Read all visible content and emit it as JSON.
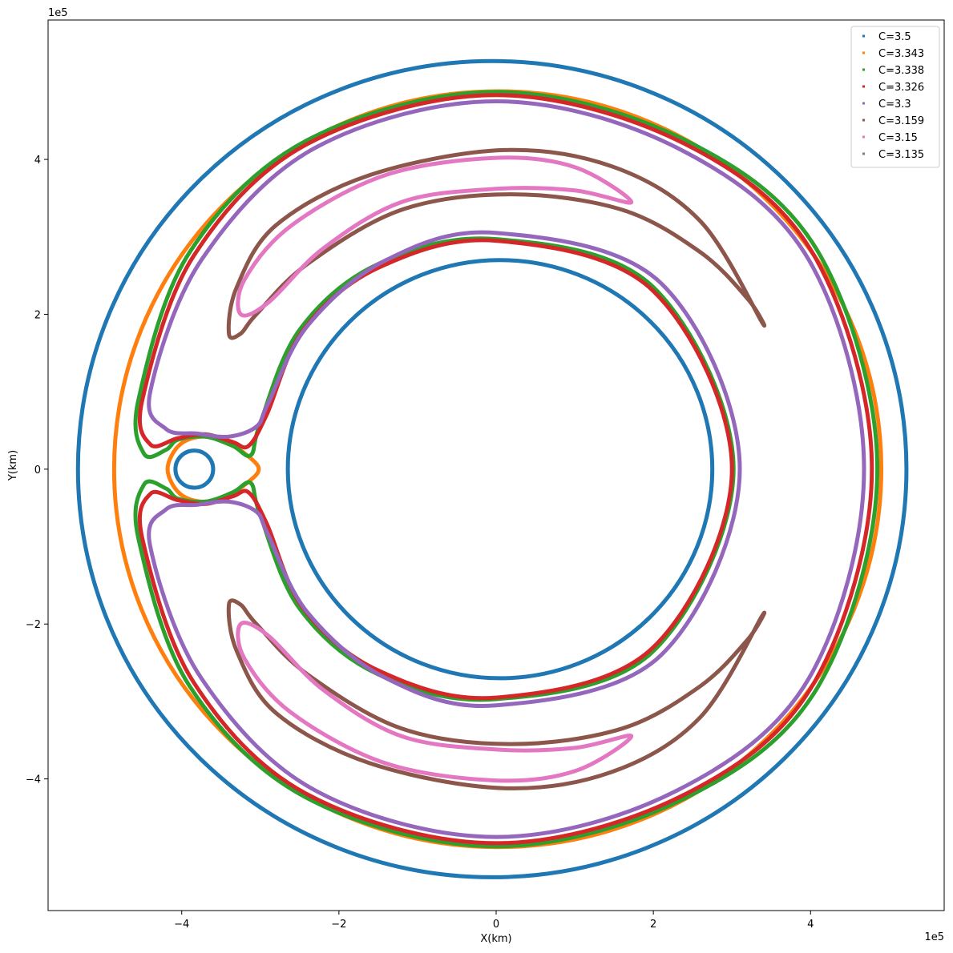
{
  "chart_data": {
    "type": "scatter",
    "title": "",
    "xlabel": "X(km)",
    "ylabel": "Y(km)",
    "x_offset_label": "1e5",
    "y_offset_label": "1e5",
    "xlim": [
      -5.7,
      5.7
    ],
    "ylim": [
      -5.7,
      5.8
    ],
    "xticks": [
      -4,
      -2,
      0,
      2,
      4
    ],
    "yticks": [
      -4,
      -2,
      0,
      2,
      4
    ],
    "xtick_labels": [
      "−4",
      "−2",
      "0",
      "2",
      "4"
    ],
    "ytick_labels": [
      "−4",
      "−2",
      "0",
      "2",
      "4"
    ],
    "grid": false,
    "legend_position": "top-right",
    "series": [
      {
        "name": "C=3.5",
        "color": "#1f77b4",
        "curves": [
          {
            "kind": "circle",
            "cx": -0.05,
            "cy": 0.0,
            "r": 5.27
          },
          {
            "kind": "circle",
            "cx": 0.05,
            "cy": 0.0,
            "r": 2.7
          },
          {
            "kind": "circle",
            "cx": -3.84,
            "cy": 0.0,
            "r": 0.24
          }
        ]
      },
      {
        "name": "C=3.343",
        "color": "#ff7f0e",
        "curves": [
          {
            "kind": "circle",
            "cx": 0.02,
            "cy": 0.0,
            "r": 4.88
          },
          {
            "kind": "loop",
            "points": [
              [
                -4.18,
                0.0
              ],
              [
                -4.02,
                0.32
              ],
              [
                -3.7,
                0.42
              ],
              [
                -3.35,
                0.3
              ],
              [
                -3.1,
                0.12
              ],
              [
                -3.02,
                0.0
              ],
              [
                -3.1,
                -0.12
              ],
              [
                -3.35,
                -0.3
              ],
              [
                -3.7,
                -0.42
              ],
              [
                -4.02,
                -0.32
              ]
            ]
          }
        ]
      },
      {
        "name": "C=3.338",
        "color": "#2ca02c",
        "curves": [
          {
            "kind": "loop",
            "points": [
              [
                0.0,
                4.87
              ],
              [
                2.4,
                4.25
              ],
              [
                4.1,
                2.8
              ],
              [
                4.85,
                0.0
              ],
              [
                4.1,
                -2.8
              ],
              [
                2.4,
                -4.25
              ],
              [
                0.0,
                -4.87
              ],
              [
                -2.4,
                -4.25
              ],
              [
                -3.9,
                -2.8
              ],
              [
                -4.55,
                -0.9
              ],
              [
                -4.48,
                -0.2
              ],
              [
                -4.2,
                -0.25
              ],
              [
                -4.05,
                -0.38
              ],
              [
                -3.7,
                -0.42
              ],
              [
                -3.35,
                -0.3
              ],
              [
                -3.12,
                -0.18
              ],
              [
                -3.0,
                -0.6
              ],
              [
                -2.5,
                -1.8
              ],
              [
                -1.5,
                -2.65
              ],
              [
                0.0,
                -2.97
              ],
              [
                2.0,
                -2.35
              ],
              [
                3.02,
                0.0
              ],
              [
                2.0,
                2.35
              ],
              [
                0.0,
                2.97
              ],
              [
                -1.5,
                2.65
              ],
              [
                -2.5,
                1.8
              ],
              [
                -3.0,
                0.6
              ],
              [
                -3.12,
                0.18
              ],
              [
                -3.35,
                0.3
              ],
              [
                -3.7,
                0.42
              ],
              [
                -4.05,
                0.38
              ],
              [
                -4.2,
                0.25
              ],
              [
                -4.48,
                0.2
              ],
              [
                -4.55,
                0.9
              ],
              [
                -3.9,
                2.8
              ],
              [
                -2.4,
                4.25
              ]
            ]
          }
        ]
      },
      {
        "name": "C=3.326",
        "color": "#d62728",
        "curves": [
          {
            "kind": "loop",
            "points": [
              [
                0.0,
                4.83
              ],
              [
                2.4,
                4.2
              ],
              [
                4.05,
                2.75
              ],
              [
                4.78,
                0.0
              ],
              [
                4.05,
                -2.75
              ],
              [
                2.4,
                -4.2
              ],
              [
                0.0,
                -4.83
              ],
              [
                -2.4,
                -4.2
              ],
              [
                -3.85,
                -2.75
              ],
              [
                -4.5,
                -0.9
              ],
              [
                -4.4,
                -0.32
              ],
              [
                -4.05,
                -0.4
              ],
              [
                -3.7,
                -0.45
              ],
              [
                -3.35,
                -0.35
              ],
              [
                -3.15,
                -0.3
              ],
              [
                -2.92,
                -0.7
              ],
              [
                -2.45,
                -1.8
              ],
              [
                -1.5,
                -2.6
              ],
              [
                0.0,
                -2.95
              ],
              [
                2.0,
                -2.3
              ],
              [
                3.0,
                0.0
              ],
              [
                2.0,
                2.3
              ],
              [
                0.0,
                2.95
              ],
              [
                -1.5,
                2.6
              ],
              [
                -2.45,
                1.8
              ],
              [
                -2.92,
                0.7
              ],
              [
                -3.15,
                0.3
              ],
              [
                -3.35,
                0.35
              ],
              [
                -3.7,
                0.45
              ],
              [
                -4.05,
                0.4
              ],
              [
                -4.4,
                0.32
              ],
              [
                -4.5,
                0.9
              ],
              [
                -3.85,
                2.75
              ],
              [
                -2.4,
                4.2
              ]
            ]
          }
        ]
      },
      {
        "name": "C=3.3",
        "color": "#9467bd",
        "curves": [
          {
            "kind": "loop",
            "points": [
              [
                0.0,
                4.75
              ],
              [
                2.3,
                4.15
              ],
              [
                3.98,
                2.7
              ],
              [
                4.68,
                0.0
              ],
              [
                3.98,
                -2.7
              ],
              [
                2.3,
                -4.15
              ],
              [
                0.0,
                -4.75
              ],
              [
                -2.3,
                -4.15
              ],
              [
                -3.75,
                -2.7
              ],
              [
                -4.4,
                -1.0
              ],
              [
                -4.2,
                -0.52
              ],
              [
                -3.8,
                -0.46
              ],
              [
                -3.4,
                -0.42
              ],
              [
                -3.05,
                -0.55
              ],
              [
                -2.9,
                -0.85
              ],
              [
                -2.4,
                -1.85
              ],
              [
                -1.4,
                -2.7
              ],
              [
                0.0,
                -3.05
              ],
              [
                2.1,
                -2.4
              ],
              [
                3.1,
                0.0
              ],
              [
                2.1,
                2.4
              ],
              [
                0.0,
                3.05
              ],
              [
                -1.4,
                2.7
              ],
              [
                -2.4,
                1.85
              ],
              [
                -2.9,
                0.85
              ],
              [
                -3.05,
                0.55
              ],
              [
                -3.4,
                0.42
              ],
              [
                -3.8,
                0.46
              ],
              [
                -4.2,
                0.52
              ],
              [
                -4.4,
                1.0
              ],
              [
                -3.75,
                2.7
              ],
              [
                -2.3,
                4.15
              ]
            ]
          }
        ]
      },
      {
        "name": "C=3.159",
        "color": "#8c564b",
        "curves": [
          {
            "kind": "loop",
            "points": [
              [
                0.1,
                4.12
              ],
              [
                1.5,
                3.9
              ],
              [
                2.6,
                3.2
              ],
              [
                3.38,
                1.9
              ],
              [
                3.2,
                2.2
              ],
              [
                2.6,
                2.8
              ],
              [
                1.6,
                3.35
              ],
              [
                0.2,
                3.55
              ],
              [
                -1.2,
                3.35
              ],
              [
                -2.4,
                2.65
              ],
              [
                -3.05,
                2.0
              ],
              [
                -3.25,
                1.75
              ],
              [
                -3.4,
                1.75
              ],
              [
                -3.3,
                2.35
              ],
              [
                -2.8,
                3.15
              ],
              [
                -1.6,
                3.8
              ]
            ]
          },
          {
            "kind": "loop",
            "points": [
              [
                0.1,
                -4.12
              ],
              [
                1.5,
                -3.9
              ],
              [
                2.6,
                -3.2
              ],
              [
                3.38,
                -1.9
              ],
              [
                3.2,
                -2.2
              ],
              [
                2.6,
                -2.8
              ],
              [
                1.6,
                -3.35
              ],
              [
                0.2,
                -3.55
              ],
              [
                -1.2,
                -3.35
              ],
              [
                -2.4,
                -2.65
              ],
              [
                -3.05,
                -2.0
              ],
              [
                -3.25,
                -1.75
              ],
              [
                -3.4,
                -1.75
              ],
              [
                -3.3,
                -2.35
              ],
              [
                -2.8,
                -3.15
              ],
              [
                -1.6,
                -3.8
              ]
            ]
          }
        ]
      },
      {
        "name": "C=3.15",
        "color": "#e377c2",
        "curves": [
          {
            "kind": "loop",
            "points": [
              [
                0.0,
                4.02
              ],
              [
                1.0,
                3.9
              ],
              [
                1.72,
                3.45
              ],
              [
                1.0,
                3.6
              ],
              [
                0.0,
                3.62
              ],
              [
                -1.2,
                3.45
              ],
              [
                -2.2,
                2.85
              ],
              [
                -2.9,
                2.15
              ],
              [
                -3.25,
                2.0
              ],
              [
                -3.2,
                2.45
              ],
              [
                -2.6,
                3.15
              ],
              [
                -1.4,
                3.8
              ]
            ]
          },
          {
            "kind": "loop",
            "points": [
              [
                0.0,
                -4.02
              ],
              [
                1.0,
                -3.9
              ],
              [
                1.72,
                -3.45
              ],
              [
                1.0,
                -3.6
              ],
              [
                0.0,
                -3.62
              ],
              [
                -1.2,
                -3.45
              ],
              [
                -2.2,
                -2.85
              ],
              [
                -2.9,
                -2.15
              ],
              [
                -3.25,
                -2.0
              ],
              [
                -3.2,
                -2.45
              ],
              [
                -2.6,
                -3.15
              ],
              [
                -1.4,
                -3.8
              ]
            ]
          }
        ]
      },
      {
        "name": "C=3.135",
        "color": "#7f7f7f",
        "curves": []
      }
    ]
  }
}
